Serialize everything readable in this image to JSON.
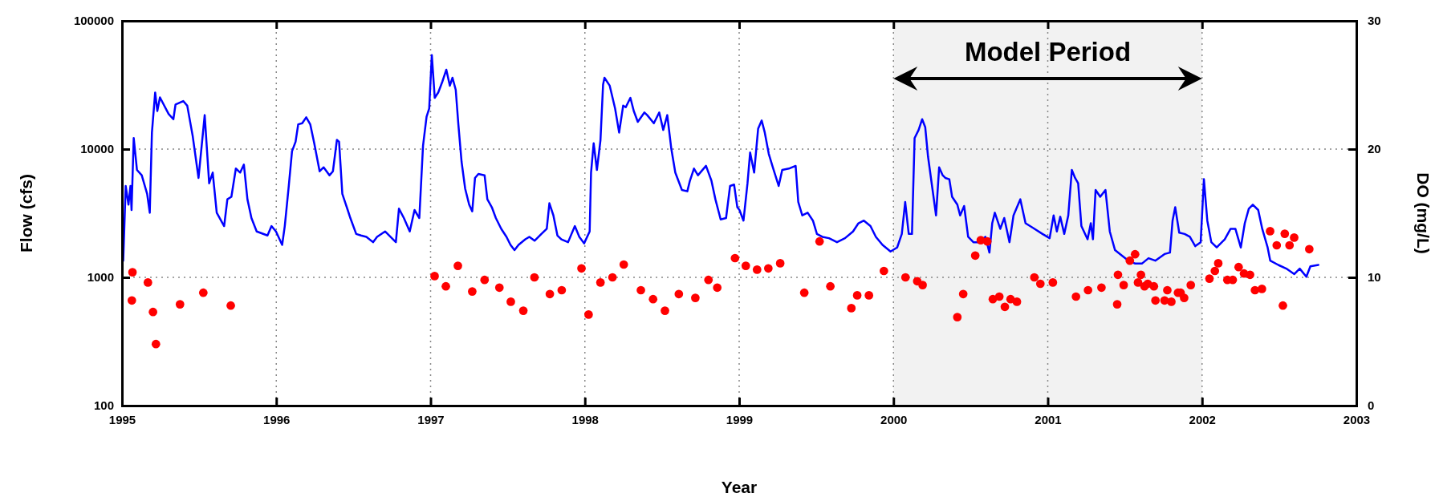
{
  "chart_data": {
    "type": "line",
    "xlabel": "Year",
    "ylabel": "Flow (cfs)",
    "y2label": "DO (mg/L)",
    "xlim": [
      1995,
      2003
    ],
    "xticks": [
      1995,
      1996,
      1997,
      1998,
      1999,
      2000,
      2001,
      2002,
      2003
    ],
    "ylim": [
      100,
      100000
    ],
    "yticks": [
      100,
      1000,
      10000,
      100000
    ],
    "log": "y",
    "y2lim": [
      0,
      30
    ],
    "y2ticks": [
      0,
      10,
      20,
      30
    ],
    "grid": true,
    "marker": "circle",
    "bands": [
      {
        "axis": "x",
        "from": 2000,
        "to": 2002,
        "label": "Model Period"
      }
    ],
    "series": [
      {
        "color": "#0000ff",
        "marker": "none",
        "x": [
          1995.008,
          1995.024,
          1995.042,
          1995.055,
          1995.062,
          1995.076,
          1995.097,
          1995.128,
          1995.163,
          1995.18,
          1995.194,
          1995.215,
          1995.229,
          1995.246,
          1995.302,
          1995.333,
          1995.347,
          1995.397,
          1995.423,
          1995.458,
          1995.496,
          1995.536,
          1995.565,
          1995.588,
          1995.614,
          1995.662,
          1995.683,
          1995.709,
          1995.738,
          1995.766,
          1995.79,
          1995.813,
          1995.839,
          1995.873,
          1995.943,
          1995.969,
          1995.998,
          1996.038,
          1996.055,
          1996.081,
          1996.102,
          1996.125,
          1996.142,
          1996.168,
          1996.194,
          1996.22,
          1996.246,
          1996.281,
          1996.307,
          1996.345,
          1996.367,
          1996.393,
          1996.407,
          1996.428,
          1996.463,
          1996.48,
          1996.518,
          1996.549,
          1996.584,
          1996.627,
          1996.653,
          1996.705,
          1996.775,
          1996.795,
          1996.827,
          1996.865,
          1996.896,
          1996.927,
          1996.951,
          1996.974,
          1996.991,
          1997.008,
          1997.027,
          1997.05,
          1997.076,
          1997.102,
          1997.125,
          1997.142,
          1997.163,
          1997.18,
          1997.201,
          1997.224,
          1997.25,
          1997.27,
          1997.288,
          1997.31,
          1997.35,
          1997.368,
          1997.397,
          1997.423,
          1997.458,
          1997.492,
          1997.518,
          1997.544,
          1997.57,
          1997.614,
          1997.64,
          1997.674,
          1997.718,
          1997.753,
          1997.77,
          1997.796,
          1997.822,
          1997.848,
          1997.891,
          1997.935,
          1997.964,
          1997.995,
          1998.031,
          1998.04,
          1998.057,
          1998.078,
          1998.101,
          1998.118,
          1998.127,
          1998.161,
          1998.196,
          1998.222,
          1998.248,
          1998.265,
          1998.295,
          1998.317,
          1998.343,
          1998.386,
          1998.404,
          1998.447,
          1998.482,
          1998.508,
          1998.534,
          1998.56,
          1998.586,
          1998.629,
          1998.664,
          1998.681,
          1998.707,
          1998.733,
          1998.785,
          1998.82,
          1998.846,
          1998.88,
          1998.915,
          1998.941,
          1998.967,
          1998.988,
          1999.002,
          1999.028,
          1999.054,
          1999.071,
          1999.097,
          1999.123,
          1999.146,
          1999.166,
          1999.192,
          1999.218,
          1999.256,
          1999.279,
          1999.322,
          1999.366,
          1999.383,
          1999.409,
          1999.444,
          1999.478,
          1999.504,
          1999.539,
          1999.582,
          1999.634,
          1999.686,
          1999.738,
          1999.773,
          1999.808,
          1999.851,
          1999.886,
          1999.929,
          1999.981,
          2000.024,
          2000.054,
          2000.076,
          2000.099,
          2000.12,
          2000.137,
          2000.163,
          2000.186,
          2000.206,
          2000.224,
          2000.25,
          2000.276,
          2000.296,
          2000.319,
          2000.336,
          2000.362,
          2000.38,
          2000.414,
          2000.432,
          2000.458,
          2000.484,
          2000.518,
          2000.553,
          2000.596,
          2000.622,
          2000.64,
          2000.657,
          2000.692,
          2000.718,
          2000.752,
          2000.778,
          2000.822,
          2000.856,
          2000.9,
          2000.966,
          2001.012,
          2001.038,
          2001.059,
          2001.081,
          2001.107,
          2001.133,
          2001.156,
          2001.177,
          2001.197,
          2001.218,
          2001.258,
          2001.279,
          2001.293,
          2001.31,
          2001.34,
          2001.374,
          2001.402,
          2001.436,
          2001.48,
          2001.523,
          2001.567,
          2001.61,
          2001.653,
          2001.697,
          2001.757,
          2001.792,
          2001.809,
          2001.826,
          2001.852,
          2001.887,
          2001.921,
          2001.956,
          2001.991,
          2002.012,
          2002.034,
          2002.06,
          2002.095,
          2002.147,
          2002.185,
          2002.216,
          2002.251,
          2002.277,
          2002.303,
          2002.329,
          2002.364,
          2002.39,
          2002.425,
          2002.442,
          2002.494,
          2002.546,
          2002.598,
          2002.633,
          2002.676,
          2002.702,
          2002.754
        ],
        "values": [
          1350,
          5160,
          3690,
          5160,
          3350,
          12200,
          6880,
          6250,
          4470,
          3190,
          13450,
          27600,
          19800,
          25300,
          18800,
          17100,
          22300,
          23700,
          21800,
          12700,
          5960,
          18400,
          5410,
          6560,
          3190,
          2510,
          4060,
          4250,
          7050,
          6560,
          7570,
          4060,
          2900,
          2280,
          2120,
          2510,
          2280,
          1790,
          2510,
          5160,
          9630,
          11400,
          15600,
          15900,
          17700,
          15600,
          11100,
          6710,
          7210,
          6250,
          6710,
          11800,
          11400,
          4470,
          3350,
          2900,
          2180,
          2120,
          2070,
          1880,
          2070,
          2280,
          1880,
          3430,
          2900,
          2280,
          3350,
          2900,
          10600,
          17900,
          20700,
          54100,
          25100,
          27700,
          33500,
          41600,
          31200,
          36000,
          29000,
          15600,
          7940,
          4920,
          3690,
          3270,
          5960,
          6400,
          6250,
          4060,
          3520,
          2900,
          2390,
          2070,
          1790,
          1630,
          1790,
          1980,
          2070,
          1930,
          2180,
          2390,
          3780,
          3040,
          2120,
          1980,
          1880,
          2510,
          2070,
          1840,
          2280,
          6560,
          11100,
          6880,
          11700,
          31900,
          36000,
          31200,
          20700,
          13450,
          21800,
          21200,
          25100,
          19800,
          16300,
          19300,
          18400,
          15900,
          19300,
          14100,
          18400,
          10100,
          6560,
          4800,
          4690,
          5680,
          7050,
          6250,
          7400,
          5680,
          4060,
          2830,
          2900,
          5160,
          5290,
          3520,
          3350,
          2770,
          5410,
          9400,
          6560,
          14450,
          16700,
          13450,
          9170,
          7210,
          5160,
          6880,
          7050,
          7400,
          3870,
          3040,
          3190,
          2770,
          2180,
          2070,
          2020,
          1880,
          2020,
          2280,
          2640,
          2770,
          2510,
          2070,
          1790,
          1590,
          1710,
          2180,
          3870,
          2180,
          2180,
          12200,
          14100,
          17100,
          14800,
          8750,
          5160,
          3040,
          7210,
          6250,
          5960,
          5820,
          4250,
          3690,
          3040,
          3600,
          2070,
          1880,
          1880,
          2070,
          1560,
          2640,
          3190,
          2390,
          2900,
          1880,
          3040,
          4060,
          2640,
          2450,
          2180,
          2020,
          3040,
          2280,
          2970,
          2180,
          3040,
          6880,
          5960,
          5410,
          2510,
          1980,
          2640,
          1980,
          4800,
          4250,
          4800,
          2280,
          1630,
          1480,
          1350,
          1280,
          1280,
          1410,
          1350,
          1520,
          1560,
          2770,
          3520,
          2230,
          2180,
          2070,
          1750,
          1880,
          5820,
          2770,
          1880,
          1710,
          1980,
          2390,
          2390,
          1710,
          2640,
          3430,
          3690,
          3350,
          2390,
          1710,
          1350,
          1250,
          1170,
          1060,
          1170,
          1010,
          1220,
          1250
        ]
      },
      {
        "type": "scatter",
        "color": "#ff0000",
        "axis": "y2",
        "x": [
          1995.064,
          1995.068,
          1995.168,
          1995.201,
          1995.22,
          1995.376,
          1995.527,
          1995.705,
          1997.026,
          1997.099,
          1997.177,
          1997.27,
          1997.35,
          1997.446,
          1997.52,
          1997.601,
          1997.673,
          1997.773,
          1997.85,
          1997.978,
          1998.024,
          1998.101,
          1998.179,
          1998.252,
          1998.363,
          1998.442,
          1998.519,
          1998.609,
          1998.716,
          1998.801,
          1998.858,
          1998.973,
          1999.043,
          1999.116,
          1999.189,
          1999.266,
          1999.422,
          1999.521,
          1999.591,
          1999.727,
          1999.765,
          1999.841,
          1999.938,
          2000.078,
          2000.154,
          2000.189,
          2000.414,
          2000.452,
          2000.53,
          2000.566,
          2000.608,
          2000.644,
          2000.686,
          2000.722,
          2000.759,
          2000.8,
          2000.913,
          2000.952,
          2001.033,
          2001.183,
          2001.261,
          2001.348,
          2001.45,
          2001.455,
          2001.492,
          2001.532,
          2001.566,
          2001.585,
          2001.604,
          2001.627,
          2001.648,
          2001.688,
          2001.698,
          2001.757,
          2001.775,
          2001.801,
          2001.844,
          2001.861,
          2001.884,
          2001.927,
          2002.048,
          2002.083,
          2002.105,
          2002.164,
          2002.199,
          2002.237,
          2002.272,
          2002.311,
          2002.343,
          2002.388,
          2002.441,
          2002.484,
          2002.524,
          2002.536,
          2002.567,
          2002.597,
          2002.695
        ],
        "values": [
          8.2,
          10.4,
          9.6,
          7.3,
          4.8,
          7.9,
          8.8,
          7.8,
          10.1,
          9.3,
          10.9,
          8.9,
          9.8,
          9.2,
          8.1,
          7.4,
          10.0,
          8.7,
          9.0,
          10.7,
          7.1,
          9.6,
          10.0,
          11.0,
          9.0,
          8.3,
          7.4,
          8.7,
          8.4,
          9.8,
          9.2,
          11.5,
          10.9,
          10.6,
          10.7,
          11.1,
          8.8,
          12.8,
          9.3,
          7.6,
          8.6,
          8.6,
          10.5,
          10.0,
          9.7,
          9.4,
          6.9,
          8.7,
          11.7,
          12.9,
          12.8,
          8.3,
          8.5,
          7.7,
          8.3,
          8.1,
          10.0,
          9.5,
          9.6,
          8.5,
          9.0,
          9.2,
          7.9,
          10.2,
          9.4,
          11.3,
          11.8,
          9.6,
          10.2,
          9.3,
          9.5,
          9.3,
          8.2,
          8.2,
          9.0,
          8.1,
          8.8,
          8.8,
          8.4,
          9.4,
          9.9,
          10.5,
          11.1,
          9.8,
          9.8,
          10.8,
          10.3,
          10.2,
          9.0,
          9.1,
          13.6,
          12.5,
          7.8,
          13.4,
          12.5,
          13.1,
          12.2
        ]
      }
    ]
  }
}
